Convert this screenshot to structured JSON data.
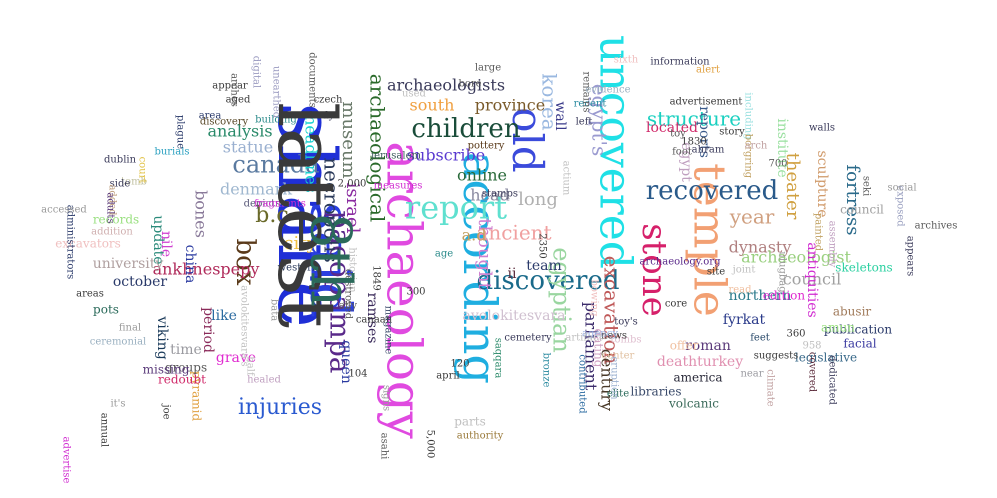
{
  "words": [
    {
      "text": "share",
      "color": "#1f2fd6",
      "rotate": 90
    },
    {
      "text": "said",
      "color": "#2a3fe0",
      "rotate": 90
    },
    {
      "text": "archaeology",
      "color": "#e04ae0",
      "rotate": 90
    },
    {
      "text": "according",
      "color": "#1faee0",
      "rotate": 90
    },
    {
      "text": "temple",
      "color": "#f2a073",
      "rotate": 90
    },
    {
      "text": "uncovered",
      "color": "#1fe0e6",
      "rotate": 90
    },
    {
      "text": "old",
      "color": "#3b4bdb",
      "rotate": 90
    },
    {
      "text": "report",
      "color": "#5fe0cf",
      "rotate": 0
    },
    {
      "text": "children",
      "color": "#1a4d3a",
      "rotate": 0
    },
    {
      "text": "recovered",
      "color": "#2a5a8a",
      "rotate": 0
    },
    {
      "text": "discovered",
      "color": "#1a6a8a",
      "rotate": 0
    },
    {
      "text": "box",
      "color": "#5a3a1a",
      "rotate": 90
    },
    {
      "text": "pacopampa",
      "color": "#5a2a8a",
      "rotate": 90
    },
    {
      "text": "stone",
      "color": "#d6206a",
      "rotate": 90
    },
    {
      "text": "egyptian",
      "color": "#9ad6a0",
      "rotate": 90
    },
    {
      "text": "canada",
      "color": "#5a7aa0",
      "rotate": 0
    },
    {
      "text": "b.c",
      "color": "#6a6a2a",
      "rotate": 0
    },
    {
      "text": "korea",
      "color": "#9ab8e0",
      "rotate": 90
    },
    {
      "text": "egypt's",
      "color": "#9a9ad0",
      "rotate": 90
    },
    {
      "text": "structure",
      "color": "#1ad0c0",
      "rotate": 0
    },
    {
      "text": "excavation",
      "color": "#c05a5a",
      "rotate": 90
    },
    {
      "text": "injuries",
      "color": "#2a5ad0",
      "rotate": 0
    },
    {
      "text": "necropolis",
      "color": "#2a3a5a",
      "rotate": 90
    },
    {
      "text": "israel",
      "color": "#8a2aa0",
      "rotate": 90
    },
    {
      "text": "museum",
      "color": "#6a7a6a",
      "rotate": 90
    },
    {
      "text": "archaeological",
      "color": "#2a6a2a",
      "rotate": 90
    },
    {
      "text": "thought",
      "color": "#d080d0",
      "rotate": 90
    },
    {
      "text": "ancient",
      "color": "#f0a0a0",
      "rotate": 0
    },
    {
      "text": "long",
      "color": "#b0b0b0",
      "rotate": 0
    },
    {
      "text": "year",
      "color": "#d0a080",
      "rotate": 0
    },
    {
      "text": "theater",
      "color": "#d0a040",
      "rotate": 90
    },
    {
      "text": "fortress",
      "color": "#2a6a8a",
      "rotate": 90
    },
    {
      "text": "dynasty",
      "color": "#b08080",
      "rotate": 0
    },
    {
      "text": "council",
      "color": "#a0a0a0",
      "rotate": 0
    },
    {
      "text": "archaeologist",
      "color": "#9ad080",
      "rotate": 0
    },
    {
      "text": "northern",
      "color": "#2a7a8a",
      "rotate": 0
    },
    {
      "text": "fyrkat",
      "color": "#2a3a8a",
      "rotate": 0
    },
    {
      "text": "roman",
      "color": "#5a3a7a",
      "rotate": 0
    },
    {
      "text": "deathturkey",
      "color": "#e090b0",
      "rotate": 0
    },
    {
      "text": "parliament",
      "color": "#3a2a6a",
      "rotate": 90
    },
    {
      "text": "century",
      "color": "#4a3a2a",
      "rotate": 90
    },
    {
      "text": "ankhnespepy",
      "color": "#b02a5a",
      "rotate": 0
    },
    {
      "text": "city",
      "color": "#f0c040",
      "rotate": 0
    },
    {
      "text": "denmark",
      "color": "#a0b8d0",
      "rotate": 0
    },
    {
      "text": "analysis",
      "color": "#2a8a6a",
      "rotate": 0
    },
    {
      "text": "statue",
      "color": "#9ab0d0",
      "rotate": 0
    },
    {
      "text": "bones",
      "color": "#8a7a9a",
      "rotate": 90
    },
    {
      "text": "headlines",
      "color": "#1ad0d0",
      "rotate": 90
    },
    {
      "text": "province",
      "color": "#7a5a2a",
      "rotate": 0
    },
    {
      "text": "south",
      "color": "#f0a040",
      "rotate": 0
    },
    {
      "text": "archaeologists",
      "color": "#3a3a5a",
      "rotate": 0
    },
    {
      "text": "subscribe",
      "color": "#5a3ad0",
      "rotate": 0
    },
    {
      "text": "online",
      "color": "#2a6a3a",
      "rotate": 0
    },
    {
      "text": "head",
      "color": "#8a8aa0",
      "rotate": 0
    },
    {
      "text": "a.d",
      "color": "#c0a060",
      "rotate": 0
    },
    {
      "text": "team",
      "color": "#2a3a6a",
      "rotate": 0
    },
    {
      "text": "ii",
      "color": "#5a2a3a",
      "rotate": 0
    },
    {
      "text": "ramses",
      "color": "#3a2a5a",
      "rotate": 90
    },
    {
      "text": "queen",
      "color": "#2a3aa0",
      "rotate": 90
    },
    {
      "text": "university",
      "color": "#b0a0a0",
      "rotate": 0
    },
    {
      "text": "october",
      "color": "#2a3a6a",
      "rotate": 0
    },
    {
      "text": "viking",
      "color": "#1a3a5a",
      "rotate": 90
    },
    {
      "text": "nile",
      "color": "#d040d0",
      "rotate": 90
    },
    {
      "text": "update",
      "color": "#2a8a7a",
      "rotate": 90
    },
    {
      "text": "china",
      "color": "#2a3aa0",
      "rotate": 90
    },
    {
      "text": "period",
      "color": "#8a2a5a",
      "rotate": 90
    },
    {
      "text": "time",
      "color": "#9a9aa0",
      "rotate": 0
    },
    {
      "text": "grave",
      "color": "#e02ad0",
      "rotate": 0
    },
    {
      "text": "like",
      "color": "#2a6aa0",
      "rotate": 0
    },
    {
      "text": "egypt",
      "color": "#c0a0c0",
      "rotate": 90
    },
    {
      "text": "located",
      "color": "#d02a6a",
      "rotate": 0
    },
    {
      "text": "reports",
      "color": "#3a5a8a",
      "rotate": 90
    },
    {
      "text": "wall",
      "color": "#3a3a8a",
      "rotate": 90
    },
    {
      "text": "institute",
      "color": "#9ae0a0",
      "rotate": 90
    },
    {
      "text": "sculpture",
      "color": "#d09a6a",
      "rotate": 90
    },
    {
      "text": "antiquities",
      "color": "#d02ad0",
      "rotate": 90
    },
    {
      "text": "council",
      "color": "#a0a0a0",
      "rotate": 0
    },
    {
      "text": "skeletons",
      "color": "#2ad0a0",
      "rotate": 0
    },
    {
      "text": "edition",
      "color": "#e02ad0",
      "rotate": 0
    },
    {
      "text": "abusir",
      "color": "#a07a5a",
      "rotate": 0
    },
    {
      "text": "publication",
      "color": "#2a3a6a",
      "rotate": 0
    },
    {
      "text": "facial",
      "color": "#3a3aa0",
      "rotate": 0
    },
    {
      "text": "legislative",
      "color": "#3a6a8a",
      "rotate": 0
    },
    {
      "text": "amun",
      "color": "#9ae080",
      "rotate": 0
    },
    {
      "text": "offer",
      "color": "#f0c0a0",
      "rotate": 0
    },
    {
      "text": "america",
      "color": "#2a2a3a",
      "rotate": 0
    },
    {
      "text": "volcanic",
      "color": "#3a6a5a",
      "rotate": 0
    },
    {
      "text": "libraries",
      "color": "#3a4a6a",
      "rotate": 0
    },
    {
      "text": "parts",
      "color": "#c0c0c0",
      "rotate": 0
    },
    {
      "text": "authority",
      "color": "#9a7a3a",
      "rotate": 0
    },
    {
      "text": "avolokitesvara",
      "color": "#d0c0d0",
      "rotate": 0
    },
    {
      "text": "dating",
      "color": "#d0a0c0",
      "rotate": 90
    },
    {
      "text": "cemetery",
      "color": "#3a3a5a",
      "rotate": 0
    },
    {
      "text": "bronze",
      "color": "#2a8aa0",
      "rotate": 90
    },
    {
      "text": "pyramid",
      "color": "#e0a040",
      "rotate": 90
    },
    {
      "text": "redoubt",
      "color": "#d02a6a",
      "rotate": 0
    },
    {
      "text": "groups",
      "color": "#5a5a5a",
      "rotate": 0
    },
    {
      "text": "missing",
      "color": "#5a3a7a",
      "rotate": 0
    },
    {
      "text": "ceremonial",
      "color": "#9ab0c0",
      "rotate": 0
    },
    {
      "text": "final",
      "color": "#9a9a9a",
      "rotate": 0
    },
    {
      "text": "pots",
      "color": "#2a6a5a",
      "rotate": 0
    },
    {
      "text": "areas",
      "color": "#3a3a3a",
      "rotate": 0
    },
    {
      "text": "excavators",
      "color": "#f0c0c0",
      "rotate": 0
    },
    {
      "text": "addition",
      "color": "#d0b0b0",
      "rotate": 0
    },
    {
      "text": "records",
      "color": "#9ae080",
      "rotate": 0
    },
    {
      "text": "depicts",
      "color": "#5a5a7a",
      "rotate": 0
    },
    {
      "text": "fragments",
      "color": "#d02ad0",
      "rotate": 0
    },
    {
      "text": "western",
      "color": "#2a3a5a",
      "rotate": 0
    },
    {
      "text": "tomb",
      "color": "#c0c0a0",
      "rotate": 0
    },
    {
      "text": "court",
      "color": "#e0c040",
      "rotate": 90
    },
    {
      "text": "dublin",
      "color": "#3a3a5a",
      "rotate": 0
    },
    {
      "text": "side",
      "color": "#3a3a5a",
      "rotate": 0
    },
    {
      "text": "burials",
      "color": "#2aa0c0",
      "rotate": 0
    },
    {
      "text": "plague",
      "color": "#2a3a6a",
      "rotate": 90
    },
    {
      "text": "area",
      "color": "#2a3a6a",
      "rotate": 0
    },
    {
      "text": "discovery",
      "color": "#5a4a2a",
      "rotate": 0
    },
    {
      "text": "building",
      "color": "#2a8a8a",
      "rotate": 0
    },
    {
      "text": "body",
      "color": "#3a3a5a",
      "rotate": 0
    },
    {
      "text": "czech",
      "color": "#3a3a3a",
      "rotate": 0
    },
    {
      "text": "documents",
      "color": "#5a5a5a",
      "rotate": 90
    },
    {
      "text": "used",
      "color": "#c0c0c0",
      "rotate": 0
    },
    {
      "text": "bore",
      "color": "#5a5a5a",
      "rotate": 0
    },
    {
      "text": "large",
      "color": "#5a5a5a",
      "rotate": 0
    },
    {
      "text": "pottery",
      "color": "#5a3a1a",
      "rotate": 0
    },
    {
      "text": "jerusalem",
      "color": "#3a5a5a",
      "rotate": 0
    },
    {
      "text": "measures",
      "color": "#d02ad0",
      "rotate": 0
    },
    {
      "text": "canaan",
      "color": "#3a3a3a",
      "rotate": 0
    },
    {
      "text": "magazine",
      "color": "#3a4a6a",
      "rotate": 90
    },
    {
      "text": "stamps",
      "color": "#3a3a5a",
      "rotate": 0
    },
    {
      "text": "left",
      "color": "#3a3a5a",
      "rotate": 0
    },
    {
      "text": "recent",
      "color": "#2a8aa0",
      "rotate": 0
    },
    {
      "text": "remains",
      "color": "#5a5a5a",
      "rotate": 90
    },
    {
      "text": "evidence",
      "color": "#9ab0c0",
      "rotate": 0
    },
    {
      "text": "sixth",
      "color": "#f0c0c0",
      "rotate": 0
    },
    {
      "text": "alert",
      "color": "#e0a040",
      "rotate": 0
    },
    {
      "text": "including",
      "color": "#9ae0e0",
      "rotate": 90
    },
    {
      "text": "information",
      "color": "#3a3a5a",
      "rotate": 0
    },
    {
      "text": "advertisement",
      "color": "#3a3a3a",
      "rotate": 0
    },
    {
      "text": "borgring",
      "color": "#c0a060",
      "rotate": 90
    },
    {
      "text": "700",
      "color": "#5a5a5a",
      "rotate": 0
    },
    {
      "text": "story",
      "color": "#3a3a3a",
      "rotate": 0
    },
    {
      "text": "ahram",
      "color": "#3a3a5a",
      "rotate": 0
    },
    {
      "text": "1830",
      "color": "#3a3a3a",
      "rotate": 0
    },
    {
      "text": "foot",
      "color": "#5a5a5a",
      "rotate": 0
    },
    {
      "text": "toy",
      "color": "#5a5a5a",
      "rotate": 0
    },
    {
      "text": "arch",
      "color": "#c0a0a0",
      "rotate": 0
    },
    {
      "text": "walls",
      "color": "#3a3a5a",
      "rotate": 0
    },
    {
      "text": "seki",
      "color": "#5a5a5a",
      "rotate": 90
    },
    {
      "text": "exposed",
      "color": "#9aa0c0",
      "rotate": 90
    },
    {
      "text": "social",
      "color": "#9a9a9a",
      "rotate": 0
    },
    {
      "text": "archives",
      "color": "#5a5a5a",
      "rotate": 0
    },
    {
      "text": "ulugbag",
      "color": "#9a9a9a",
      "rotate": 90
    },
    {
      "text": "archaeology.org",
      "color": "#5a2a8a",
      "rotate": 0
    },
    {
      "text": "site",
      "color": "#3a3a3a",
      "rotate": 0
    },
    {
      "text": "core",
      "color": "#3a3a3a",
      "rotate": 0
    },
    {
      "text": "toy's",
      "color": "#3a3a5a",
      "rotate": 0
    },
    {
      "text": "tombs",
      "color": "#e0c0d0",
      "rotate": 0
    },
    {
      "text": "center",
      "color": "#e0c0a0",
      "rotate": 0
    },
    {
      "text": "news",
      "color": "#3a3a3a",
      "rotate": 0
    },
    {
      "text": "joint",
      "color": "#c0c0c0",
      "rotate": 0
    },
    {
      "text": "read",
      "color": "#f0c0a0",
      "rotate": 0
    },
    {
      "text": "feet",
      "color": "#2a4a6a",
      "rotate": 0
    },
    {
      "text": "near",
      "color": "#9a9aa0",
      "rotate": 0
    },
    {
      "text": "suggests",
      "color": "#3a3a3a",
      "rotate": 0
    },
    {
      "text": "360",
      "color": "#3a3a3a",
      "rotate": 0
    },
    {
      "text": "958",
      "color": "#c0c0c0",
      "rotate": 0
    },
    {
      "text": "covered",
      "color": "#5a2a3a",
      "rotate": 90
    },
    {
      "text": "climate",
      "color": "#c0a0a0",
      "rotate": 90
    },
    {
      "text": "dedicated",
      "color": "#3a3a5a",
      "rotate": 90
    },
    {
      "text": "appears",
      "color": "#3a3a5a",
      "rotate": 90
    },
    {
      "text": "painted",
      "color": "#c0a060",
      "rotate": 90
    },
    {
      "text": "assembly",
      "color": "#c0a0c0",
      "rotate": 90
    },
    {
      "text": "contributed",
      "color": "#2a6aa0",
      "rotate": 90
    },
    {
      "text": "elite",
      "color": "#2a6a5a",
      "rotate": 0
    },
    {
      "text": "eruption",
      "color": "#9ab0d0",
      "rotate": 90
    },
    {
      "text": "bowing",
      "color": "#f0c0c0",
      "rotate": 90
    },
    {
      "text": "actium",
      "color": "#c0c0c0",
      "rotate": 90
    },
    {
      "text": "agency",
      "color": "#9ab0e0",
      "rotate": 0
    },
    {
      "text": "artifact",
      "color": "#c0c0c0",
      "rotate": 0
    },
    {
      "text": "2350",
      "color": "#3a3a3a",
      "rotate": 90
    },
    {
      "text": "april",
      "color": "#3a3a3a",
      "rotate": 0
    },
    {
      "text": "120",
      "color": "#3a3a3a",
      "rotate": 0
    },
    {
      "text": "age",
      "color": "#2a8a8a",
      "rotate": 0
    },
    {
      "text": "1849",
      "color": "#3a3a3a",
      "rotate": 90
    },
    {
      "text": "signs",
      "color": "#9a9a9a",
      "rotate": 90
    },
    {
      "text": "300",
      "color": "#3a3a3a",
      "rotate": 0
    },
    {
      "text": "2,000",
      "color": "#3a3a3a",
      "rotate": 0
    },
    {
      "text": "5,000",
      "color": "#3a3a3a",
      "rotate": 90
    },
    {
      "text": "asahi",
      "color": "#5a5a5a",
      "rotate": 90
    },
    {
      "text": "104",
      "color": "#3a3a3a",
      "rotate": 0
    },
    {
      "text": "ally",
      "color": "#5a5a5a",
      "rotate": 0
    },
    {
      "text": "bata",
      "color": "#9a9a9a",
      "rotate": 90
    },
    {
      "text": "avolokitesvara's",
      "color": "#c0c0c0",
      "rotate": 90
    },
    {
      "text": "historian",
      "color": "#c0c0c0",
      "rotate": 90
    },
    {
      "text": "half",
      "color": "#c0c0c0",
      "rotate": 90
    },
    {
      "text": "healed",
      "color": "#c0a0c0",
      "rotate": 0
    },
    {
      "text": "it's",
      "color": "#9a9a9a",
      "rotate": 0
    },
    {
      "text": "joe",
      "color": "#3a3a3a",
      "rotate": 90
    },
    {
      "text": "annual",
      "color": "#3a3a3a",
      "rotate": 90
    },
    {
      "text": "advertise",
      "color": "#d02ad0",
      "rotate": 90
    },
    {
      "text": "administrators",
      "color": "#2a3a6a",
      "rotate": 90
    },
    {
      "text": "accessed",
      "color": "#9a9a9a",
      "rotate": 0
    },
    {
      "text": "added",
      "color": "#c0a080",
      "rotate": 90
    },
    {
      "text": "adults",
      "color": "#5a3a7a",
      "rotate": 90
    },
    {
      "text": "appear",
      "color": "#3a3a3a",
      "rotate": 0
    },
    {
      "text": "arches",
      "color": "#5a5a5a",
      "rotate": 90
    },
    {
      "text": "aged",
      "color": "#3a3a3a",
      "rotate": 0
    },
    {
      "text": "digital",
      "color": "#9a9ac0",
      "rotate": 90
    },
    {
      "text": "unearthed",
      "color": "#9a9ac0",
      "rotate": 90
    },
    {
      "text": "destroyed",
      "color": "#5a5a5a",
      "rotate": 90
    },
    {
      "text": "saqqara",
      "color": "#2a8a6a",
      "rotate": 90
    },
    {
      "text": "latest",
      "color": "#3a3a3a",
      "rotate": 90
    },
    {
      "text": "8th",
      "color": "#2a6a5a",
      "rotate": 90
    }
  ]
}
